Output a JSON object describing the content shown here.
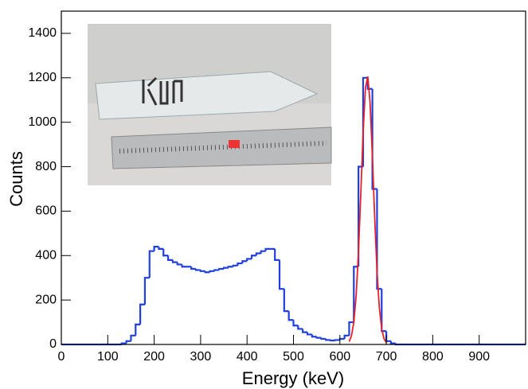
{
  "chart_data": {
    "type": "histogram",
    "x_label": "Energy (keV)",
    "y_label": "Counts",
    "xlim": [
      0,
      1000
    ],
    "ylim": [
      0,
      1500
    ],
    "xticks": [
      0,
      100,
      200,
      300,
      400,
      500,
      600,
      700,
      800,
      900
    ],
    "yticks": [
      0,
      200,
      400,
      600,
      800,
      1000,
      1200,
      1400
    ],
    "color": "#1f3fe0",
    "bins": [
      0,
      10,
      20,
      30,
      40,
      50,
      60,
      70,
      80,
      90,
      100,
      110,
      120,
      130,
      140,
      150,
      160,
      170,
      180,
      190,
      200,
      210,
      220,
      230,
      240,
      250,
      260,
      270,
      280,
      290,
      300,
      310,
      320,
      330,
      340,
      350,
      360,
      370,
      380,
      390,
      400,
      410,
      420,
      430,
      440,
      450,
      460,
      470,
      480,
      490,
      500,
      510,
      520,
      530,
      540,
      550,
      560,
      570,
      580,
      590,
      600,
      610,
      620,
      630,
      640,
      650,
      660,
      670,
      680,
      690,
      700,
      710,
      720,
      730,
      740,
      750,
      760,
      770,
      780,
      790,
      800,
      810,
      820,
      830,
      840,
      850,
      860,
      870,
      880,
      890,
      900,
      910,
      920,
      930,
      940,
      950,
      960,
      970,
      980,
      990,
      1000
    ],
    "counts": [
      0,
      0,
      0,
      0,
      0,
      0,
      0,
      0,
      0,
      0,
      0,
      0,
      0,
      5,
      15,
      40,
      90,
      180,
      300,
      420,
      440,
      430,
      400,
      380,
      370,
      360,
      350,
      350,
      340,
      335,
      330,
      325,
      330,
      335,
      340,
      345,
      350,
      355,
      365,
      375,
      385,
      400,
      410,
      420,
      430,
      430,
      380,
      250,
      150,
      110,
      85,
      70,
      55,
      45,
      35,
      30,
      25,
      20,
      18,
      20,
      25,
      40,
      100,
      350,
      800,
      1200,
      1150,
      700,
      250,
      60,
      15,
      5,
      0,
      0,
      0,
      0,
      0,
      0,
      0,
      0,
      0,
      0,
      0,
      0,
      0,
      0,
      0,
      0,
      0,
      0,
      0,
      0,
      0,
      0,
      0,
      0,
      0,
      0,
      0,
      0
    ],
    "fit": {
      "color": "#e8202a",
      "x": [
        620,
        625,
        630,
        635,
        640,
        645,
        650,
        655,
        660,
        665,
        670,
        675,
        680,
        685,
        690,
        695,
        700
      ],
      "values": [
        13,
        40,
        100,
        220,
        416,
        678,
        952,
        1154,
        1206,
        1088,
        846,
        568,
        328,
        164,
        71,
        26,
        8
      ]
    }
  }
}
